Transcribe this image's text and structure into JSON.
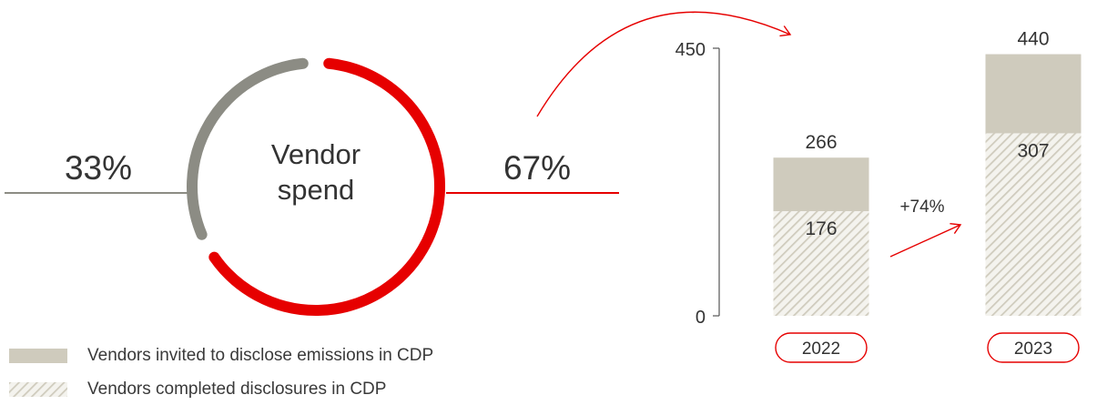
{
  "donut": {
    "center_line1": "Vendor",
    "center_line2": "spend",
    "segments": [
      {
        "label": "33%",
        "value": 33,
        "color": "#8c8c84"
      },
      {
        "label": "67%",
        "value": 67,
        "color": "#e60000"
      }
    ]
  },
  "chart_data": {
    "type": "bar",
    "categories": [
      "2022",
      "2023"
    ],
    "series": [
      {
        "name": "Vendors invited to disclose emissions in CDP",
        "values": [
          266,
          440
        ],
        "color": "#cfcbbd"
      },
      {
        "name": "Vendors completed disclosures in CDP",
        "values": [
          176,
          307
        ],
        "pattern": "hatched"
      }
    ],
    "ylim": [
      0,
      450
    ],
    "yticks": [
      0,
      450
    ],
    "annotation": "+74%",
    "grid": false,
    "legend_position": "bottom-left"
  },
  "colors": {
    "accent": "#e60000",
    "grey_segment": "#8c8c84",
    "bar_fill": "#cfcbbd",
    "hatch_line": "#cfcbbd",
    "hatch_bg": "#f4f3ee",
    "text": "#333333"
  }
}
